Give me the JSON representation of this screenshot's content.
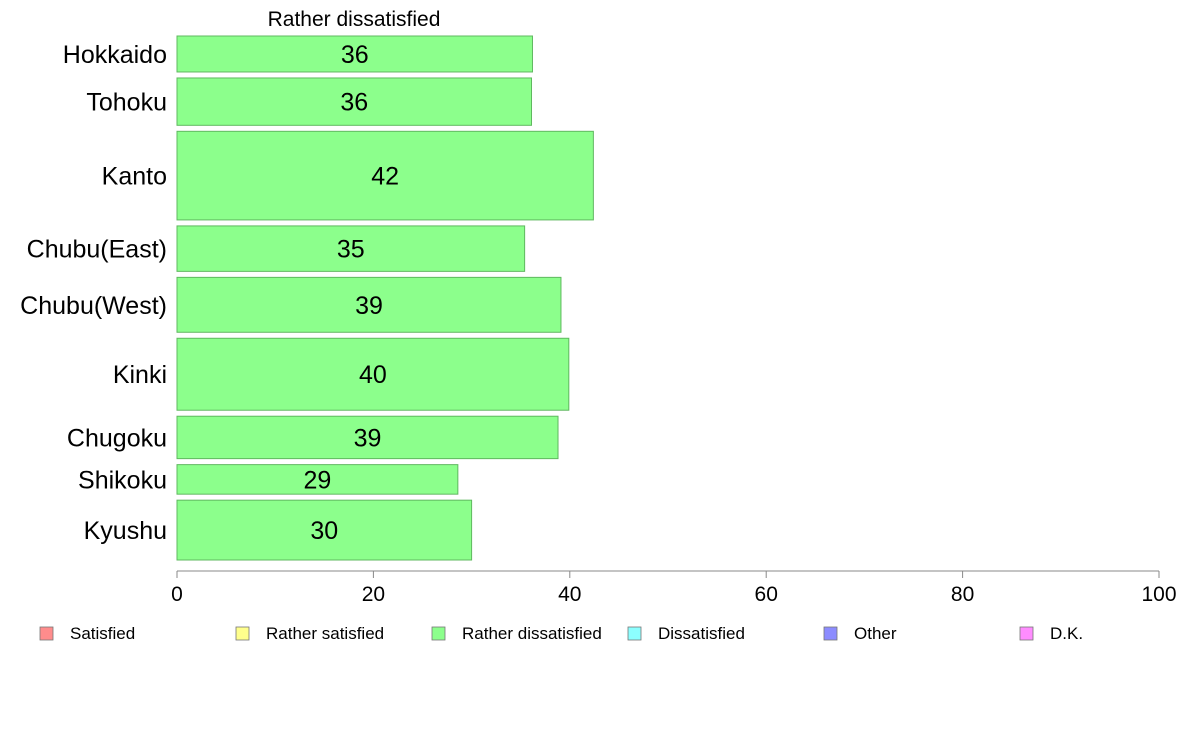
{
  "chart_data": {
    "type": "bar",
    "orientation": "horizontal",
    "title": "Rather dissatisfied",
    "categories": [
      "Hokkaido",
      "Tohoku",
      "Kanto",
      "Chubu(East)",
      "Chubu(West)",
      "Kinki",
      "Chugoku",
      "Shikoku",
      "Kyushu"
    ],
    "values": [
      36.2,
      36.1,
      42.4,
      35.4,
      39.1,
      39.9,
      38.8,
      28.6,
      30.0
    ],
    "value_labels": [
      "36",
      "36",
      "42",
      "35",
      "39",
      "40",
      "39",
      "29",
      "30"
    ],
    "relative_bar_weights": [
      0.95,
      1.25,
      2.34,
      1.2,
      1.45,
      1.9,
      1.12,
      0.78,
      1.58
    ],
    "xlim": [
      0,
      100
    ],
    "xticks": [
      "0",
      "20",
      "40",
      "60",
      "80",
      "100"
    ],
    "xlabel": "",
    "ylabel": "",
    "grid": false,
    "bar_color": "#8cff8c",
    "bar_edge_color": "#5fb85f",
    "legend_position": "bottom",
    "legend": [
      {
        "label": "Satisfied",
        "color": "#ff8c8c"
      },
      {
        "label": "Rather satisfied",
        "color": "#ffff8c"
      },
      {
        "label": "Rather dissatisfied",
        "color": "#8cff8c"
      },
      {
        "label": "Dissatisfied",
        "color": "#8cffff"
      },
      {
        "label": "Other",
        "color": "#8c8cff"
      },
      {
        "label": "D.K.",
        "color": "#ff8cff"
      }
    ]
  }
}
